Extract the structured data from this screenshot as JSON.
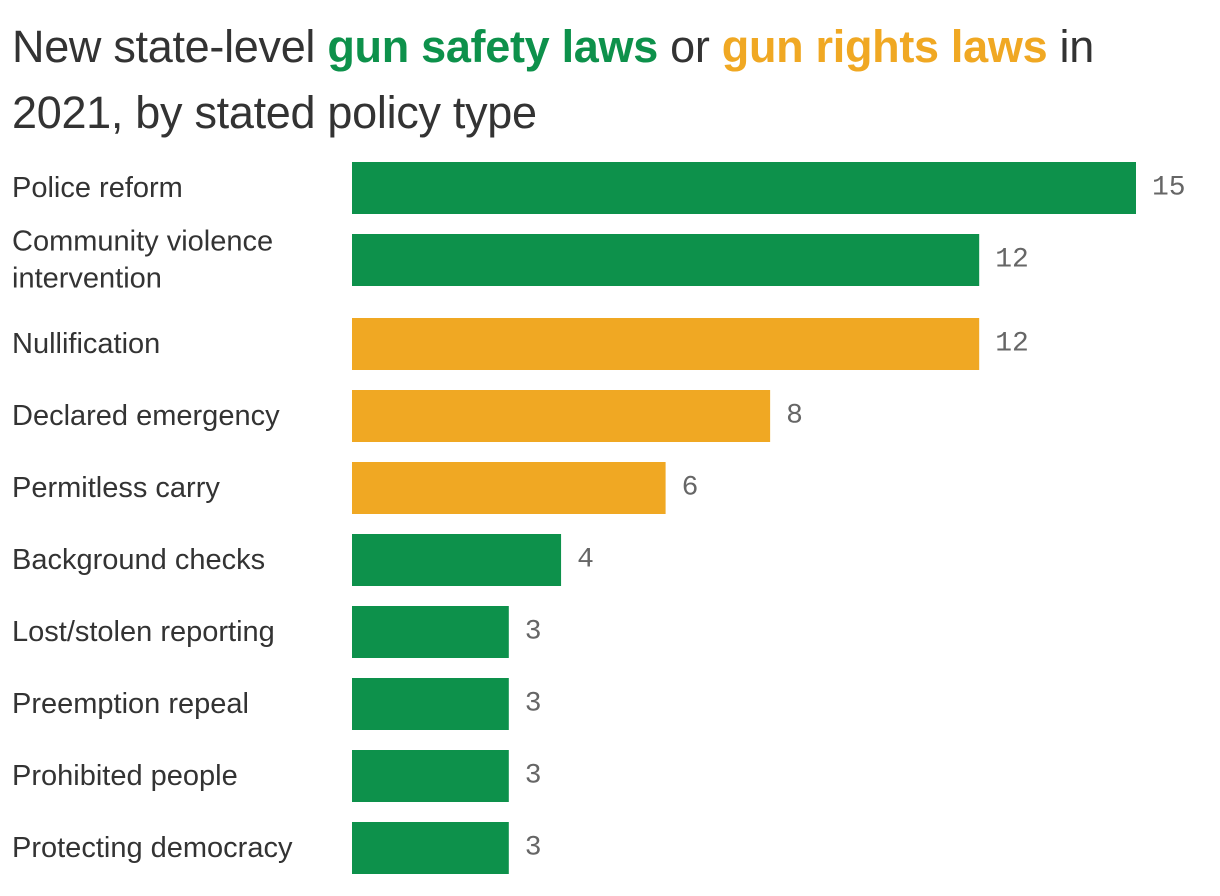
{
  "header": {
    "title_part1": "New state-level ",
    "title_safety": "gun safety laws",
    "title_part2": " or ",
    "title_rights": "gun rights laws",
    "title_part3": " in 2021, by stated policy type"
  },
  "colors": {
    "gun_safety": "#0d914b",
    "gun_rights": "#f0a823"
  },
  "chart_data": {
    "type": "bar",
    "orientation": "horizontal",
    "title": "New state-level gun safety laws or gun rights laws in 2021, by stated policy type",
    "xlabel": "",
    "ylabel": "",
    "xlim": [
      0,
      15
    ],
    "grid": false,
    "categories": [
      [
        "Police reform"
      ],
      [
        "Community violence",
        "intervention"
      ],
      [
        "Nullification"
      ],
      [
        "Declared emergency"
      ],
      [
        "Permitless carry"
      ],
      [
        "Background checks"
      ],
      [
        "Lost/stolen reporting"
      ],
      [
        "Preemption repeal"
      ],
      [
        "Prohibited people"
      ],
      [
        "Protecting democracy"
      ]
    ],
    "values": [
      15,
      12,
      12,
      8,
      6,
      4,
      3,
      3,
      3,
      3
    ],
    "groups": [
      "gun_safety",
      "gun_safety",
      "gun_rights",
      "gun_rights",
      "gun_rights",
      "gun_safety",
      "gun_safety",
      "gun_safety",
      "gun_safety",
      "gun_safety"
    ]
  }
}
